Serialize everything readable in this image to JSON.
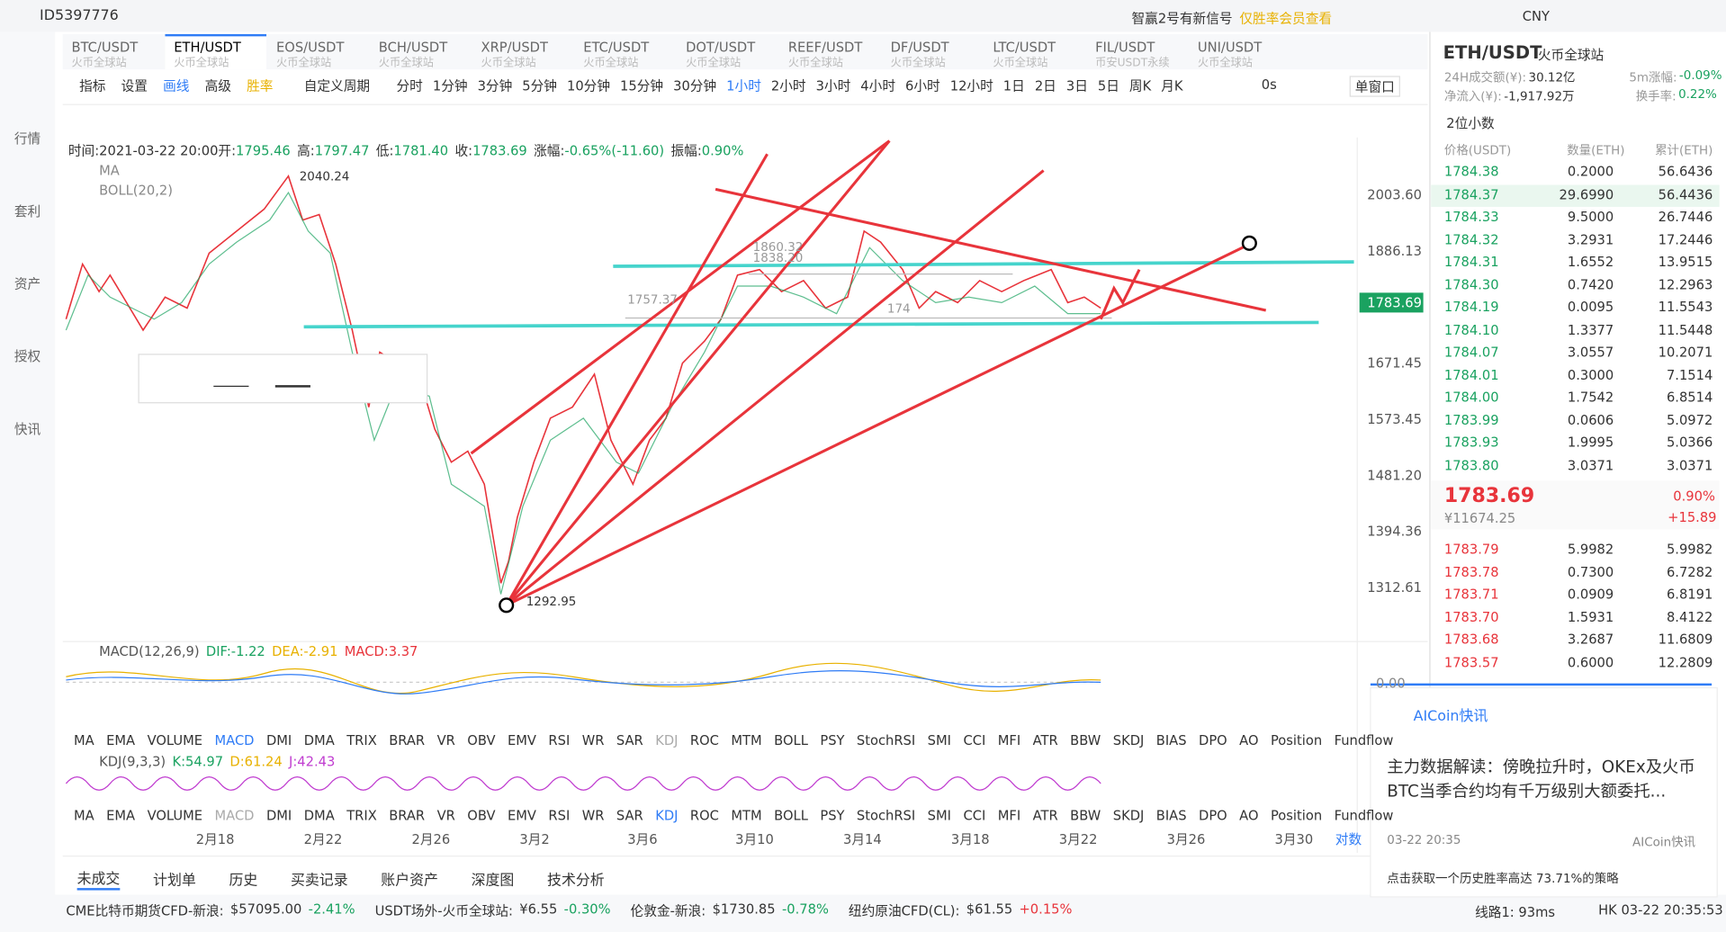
{
  "header": {
    "user": "ID5397776",
    "notice": "智赢2号有新信号",
    "notice_link": "仅胜率会员查看",
    "currency": "CNY"
  },
  "sidebar": [
    "行情",
    "套利",
    "资产",
    "授权",
    "快讯"
  ],
  "tabs": [
    {
      "symbol": "BTC/USDT",
      "exchange": "火币全球站"
    },
    {
      "symbol": "ETH/USDT",
      "exchange": "火币全球站"
    },
    {
      "symbol": "EOS/USDT",
      "exchange": "火币全球站"
    },
    {
      "symbol": "BCH/USDT",
      "exchange": "火币全球站"
    },
    {
      "symbol": "XRP/USDT",
      "exchange": "火币全球站"
    },
    {
      "symbol": "ETC/USDT",
      "exchange": "火币全球站"
    },
    {
      "symbol": "DOT/USDT",
      "exchange": "火币全球站"
    },
    {
      "symbol": "REEF/USDT",
      "exchange": "火币全球站"
    },
    {
      "symbol": "DF/USDT",
      "exchange": "火币全球站"
    },
    {
      "symbol": "LTC/USDT",
      "exchange": "火币全球站"
    },
    {
      "symbol": "FIL/USDT",
      "exchange": "币安USDT永续"
    },
    {
      "symbol": "UNI/USDT",
      "exchange": "火币全球站"
    }
  ],
  "toolbar": {
    "items": [
      "指标",
      "设置",
      "画线",
      "高级",
      "胜率",
      "自定义周期"
    ],
    "periods": [
      "分时",
      "1分钟",
      "3分钟",
      "5分钟",
      "10分钟",
      "15分钟",
      "30分钟",
      "1小时",
      "2小时",
      "3小时",
      "4小时",
      "6小时",
      "12小时",
      "1日",
      "2日",
      "3日",
      "5日",
      "周K",
      "月K"
    ],
    "timer": "0s",
    "window": "单窗口"
  },
  "chart": {
    "info": [
      "时间:2021-03-22 20:00",
      "开:",
      "1795.46",
      "高:",
      "1797.47",
      "低:",
      "1781.40",
      "收:",
      "1783.69",
      "涨幅:",
      "-0.65%(-11.60)",
      "振幅:",
      "0.90%"
    ],
    "legend": [
      "MA",
      "BOLL(20,2)"
    ],
    "axis": [
      "2003.60",
      "1886.13",
      "1671.45",
      "1573.45",
      "1481.20",
      "1394.36",
      "1312.61"
    ],
    "current": "1783.69",
    "annotations": [
      "2040.24",
      "1292.95",
      "1860.32",
      "1838.20",
      "1757.37",
      "174"
    ]
  },
  "macd": {
    "legend": [
      "MACD(12,26,9)",
      "DIF:-1.22",
      "DEA:-2.91",
      "MACD:3.37"
    ],
    "zero": "0.00"
  },
  "kdj": {
    "legend": [
      "KDJ(9,3,3)",
      "K:54.97",
      "D:61.24",
      "J:42.43"
    ]
  },
  "indicators": [
    "MA",
    "EMA",
    "VOLUME",
    "MACD",
    "DMI",
    "DMA",
    "TRIX",
    "BRAR",
    "VR",
    "OBV",
    "EMV",
    "RSI",
    "WR",
    "SAR",
    "KDJ",
    "ROC",
    "MTM",
    "BOLL",
    "PSY",
    "StochRSI",
    "SMI",
    "CCI",
    "MFI",
    "ATR",
    "BBW",
    "SKDJ",
    "BIAS",
    "DPO",
    "AO",
    "Position",
    "Fundflow"
  ],
  "dates": [
    "2月18",
    "2月22",
    "2月26",
    "3月2",
    "3月6",
    "3月10",
    "3月14",
    "3月18",
    "3月22",
    "3月26",
    "3月30",
    "对数"
  ],
  "bottom_tabs": [
    "未成交",
    "计划单",
    "历史",
    "买卖记录",
    "账户资产",
    "深度图",
    "技术分析"
  ],
  "ticker": [
    [
      "CME比特币期货CFD-新浪:",
      "$57095.00",
      "-2.41%"
    ],
    [
      "USDT场外-火币全球站:",
      "¥6.55",
      "-0.30%"
    ],
    [
      "伦敦金-新浪:",
      "$1730.85",
      "-0.78%"
    ],
    [
      "纽约原油CFD(CL):",
      "$61.55",
      "+0.15%"
    ]
  ],
  "status": {
    "line": "线路1: 93ms",
    "clock": "HK 03-22 20:35:53"
  },
  "panel": {
    "pair": "ETH/USDT",
    "exchange": "火币全球站",
    "stats": [
      [
        "24H成交额(¥):",
        "30.12亿"
      ],
      [
        "5m涨幅:",
        "-0.09%"
      ],
      [
        "净流入(¥):",
        "-1,917.92万"
      ],
      [
        "换手率:",
        "0.22%"
      ]
    ],
    "decimals": "2位小数",
    "columns": [
      "价格(USDT)",
      "数量(ETH)",
      "累计(ETH)"
    ],
    "top": [
      [
        "1784.38",
        "0.2000",
        "56.6436"
      ],
      [
        "1784.37",
        "29.6990",
        "56.4436"
      ],
      [
        "1784.33",
        "9.5000",
        "26.7446"
      ],
      [
        "1784.32",
        "3.2931",
        "17.2446"
      ],
      [
        "1784.31",
        "1.6552",
        "13.9515"
      ],
      [
        "1784.30",
        "0.7420",
        "12.2963"
      ],
      [
        "1784.19",
        "0.0095",
        "11.5543"
      ],
      [
        "1784.10",
        "1.3377",
        "11.5448"
      ],
      [
        "1784.07",
        "3.0557",
        "10.2071"
      ],
      [
        "1784.01",
        "0.3000",
        "7.1514"
      ],
      [
        "1784.00",
        "1.7542",
        "6.8514"
      ],
      [
        "1783.99",
        "0.0606",
        "5.0972"
      ],
      [
        "1783.93",
        "1.9995",
        "5.0366"
      ],
      [
        "1783.80",
        "3.0371",
        "3.0371"
      ]
    ],
    "last": {
      "price": "1783.69",
      "change": "0.90%",
      "cny": "¥11674.25",
      "diff": "+15.89"
    },
    "bottom": [
      [
        "1783.79",
        "5.9982",
        "5.9982"
      ],
      [
        "1783.78",
        "0.7300",
        "6.7282"
      ],
      [
        "1783.71",
        "0.0909",
        "6.8191"
      ],
      [
        "1783.70",
        "1.5931",
        "8.4122"
      ],
      [
        "1783.68",
        "3.2687",
        "11.6809"
      ],
      [
        "1783.57",
        "0.6000",
        "12.2809"
      ]
    ]
  },
  "news": {
    "source": "AICoin快讯",
    "text": "主力数据解读：傍晚拉升时，OKEx及火币BTC当季合约均有千万级别大额委托...",
    "time": "03-22 20:35",
    "footer": "AICoin快讯",
    "promo": "点击获取一个历史胜率高达 73.71%的策略"
  }
}
